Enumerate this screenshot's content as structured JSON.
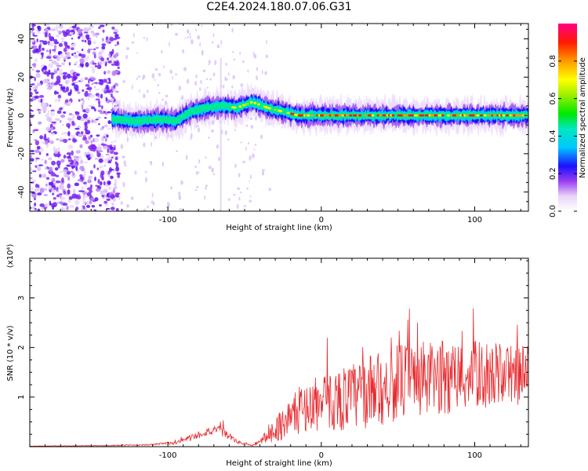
{
  "title": "C2E4.2024.180.07.06.G31",
  "chart_data": [
    {
      "type": "heatmap",
      "xlabel": "Height of straight line (km)",
      "ylabel": "Frequency (Hz)",
      "xlim": [
        -190,
        135
      ],
      "ylim": [
        -50,
        48
      ],
      "x_ticks": [
        -100,
        0,
        100
      ],
      "y_ticks": [
        -40,
        -20,
        0,
        20,
        40
      ],
      "colorbar": {
        "label": "Normalized spectral amplitude",
        "range": [
          0.0,
          1.0
        ],
        "ticks": [
          "0.0",
          "0.2",
          "0.4",
          "0.6",
          "0.8"
        ],
        "tick_values": [
          0.0,
          0.2,
          0.4,
          0.6,
          0.8
        ]
      },
      "ridge": {
        "x": [
          -135,
          -120,
          -105,
          -95,
          -85,
          -75,
          -65,
          -55,
          -45,
          -35,
          -25,
          -15,
          0,
          20,
          40,
          60,
          80,
          100,
          120,
          135
        ],
        "frequency": [
          -2,
          -3,
          -2,
          -3,
          2,
          4,
          5,
          4,
          7,
          4,
          2,
          0,
          0,
          0,
          0,
          0,
          0,
          0,
          0,
          0
        ]
      }
    },
    {
      "type": "line",
      "xlabel": "Height of straight line (km)",
      "ylabel": "SNR (10 * v/v)",
      "multiplier": "(x10⁴)",
      "xlim": [
        -190,
        135
      ],
      "ylim": [
        0,
        3.8
      ],
      "x_ticks": [
        -100,
        0,
        100
      ],
      "y_ticks": [
        1,
        2,
        3
      ],
      "color": "#e8292d",
      "envelope": {
        "x": [
          -190,
          -140,
          -110,
          -95,
          -85,
          -75,
          -65,
          -55,
          -45,
          -40,
          -30,
          -20,
          -10,
          0,
          10,
          20,
          30,
          40,
          50,
          60,
          70,
          80,
          90,
          100,
          110,
          120,
          135
        ],
        "base": [
          0.01,
          0.02,
          0.04,
          0.08,
          0.18,
          0.3,
          0.32,
          0.1,
          0.02,
          0.1,
          0.35,
          0.6,
          0.8,
          0.85,
          0.95,
          1.0,
          1.1,
          1.2,
          1.3,
          1.35,
          1.35,
          1.4,
          1.4,
          1.45,
          1.45,
          1.45,
          1.45
        ],
        "spread": [
          0.005,
          0.01,
          0.02,
          0.05,
          0.1,
          0.12,
          0.15,
          0.05,
          0.02,
          0.08,
          0.35,
          0.6,
          0.7,
          0.8,
          0.9,
          1.0,
          1.05,
          1.1,
          1.1,
          1.15,
          1.1,
          1.1,
          1.05,
          1.0,
          0.95,
          0.9,
          0.9
        ]
      }
    }
  ]
}
